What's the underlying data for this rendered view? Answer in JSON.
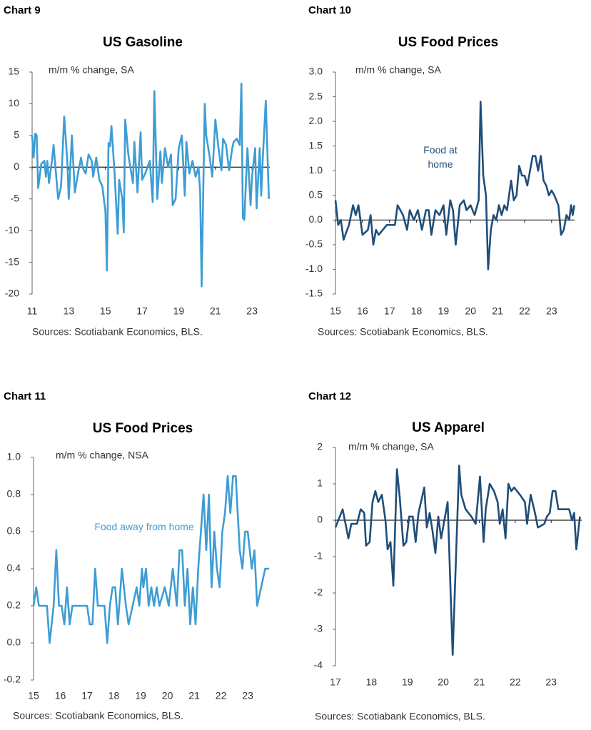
{
  "chart_data": [
    {
      "type": "line",
      "label": "Chart 9",
      "title": "US Gasoline",
      "subtitle": "m/m % change, SA",
      "source": "Sources: Scotiabank Economics, BLS.",
      "color": "#3d9dd4",
      "zero_line": true,
      "xlim": [
        11,
        23.97
      ],
      "xticks": [
        11,
        13,
        15,
        17,
        19,
        21,
        23
      ],
      "ylim": [
        -20,
        15
      ],
      "yticks": [
        15,
        10,
        5,
        0,
        -5,
        -10,
        -15,
        -20
      ],
      "x": [
        11.0,
        11.08,
        11.17,
        11.25,
        11.33,
        11.5,
        11.67,
        11.75,
        11.83,
        11.92,
        12.08,
        12.17,
        12.42,
        12.58,
        12.75,
        12.92,
        13.0,
        13.17,
        13.33,
        13.5,
        13.67,
        13.75,
        13.92,
        14.08,
        14.25,
        14.33,
        14.5,
        14.67,
        14.83,
        15.0,
        15.08,
        15.17,
        15.25,
        15.33,
        15.5,
        15.67,
        15.75,
        15.92,
        16.0,
        16.08,
        16.25,
        16.5,
        16.58,
        16.75,
        16.92,
        17.0,
        17.17,
        17.42,
        17.58,
        17.67,
        17.83,
        18.0,
        18.08,
        18.25,
        18.42,
        18.58,
        18.67,
        18.83,
        19.0,
        19.17,
        19.33,
        19.42,
        19.58,
        19.75,
        19.92,
        20.08,
        20.17,
        20.25,
        20.42,
        20.5,
        20.67,
        20.83,
        21.0,
        21.17,
        21.33,
        21.42,
        21.58,
        21.75,
        21.92,
        22.0,
        22.17,
        22.33,
        22.42,
        22.5,
        22.58,
        22.75,
        22.92,
        23.0,
        23.17,
        23.25,
        23.42,
        23.5,
        23.58,
        23.75,
        23.92
      ],
      "values": [
        5,
        1.5,
        5.3,
        5,
        -3.3,
        0.5,
        1,
        -1.5,
        1,
        -2.5,
        1,
        3.5,
        -5,
        -3,
        8,
        1,
        -5,
        5,
        -4,
        -1,
        1.5,
        0,
        -1,
        2,
        1,
        -1.5,
        1.5,
        -2,
        -3,
        -7,
        -16.3,
        3.8,
        3.3,
        6.5,
        -1,
        -10.5,
        -2,
        -5,
        -10.3,
        7.5,
        2,
        -2.5,
        4,
        -4,
        5.5,
        -2,
        -1,
        1,
        -5.5,
        12,
        -5,
        2.5,
        -2.5,
        3,
        0,
        2,
        -6,
        -5,
        3,
        5,
        -4.5,
        4,
        -1,
        1,
        -1.5,
        0,
        -4,
        -18.8,
        10,
        5,
        2,
        -1.5,
        7.5,
        3,
        -0.5,
        4.5,
        3.5,
        -0.5,
        3,
        4,
        4.5,
        3.5,
        13.2,
        -8,
        -8.3,
        3,
        -6,
        -1.5,
        3,
        -6.5,
        3,
        -4.5,
        1,
        10.5,
        -5
      ]
    },
    {
      "type": "line",
      "label": "Chart 10",
      "title": "US Food Prices",
      "subtitle": "m/m % change, SA",
      "source": "Sources: Scotiabank Economics, BLS.",
      "annotation": "Food at home",
      "color": "#1f4e79",
      "zero_line": true,
      "xlim": [
        15,
        23.85
      ],
      "xticks": [
        15,
        16,
        17,
        18,
        19,
        20,
        21,
        22,
        23
      ],
      "ylim": [
        -1.5,
        3
      ],
      "yticks": [
        {
          "value": 3,
          "label": "3.0"
        },
        2.5,
        {
          "value": 2,
          "label": "2.0"
        },
        1.5,
        {
          "value": 1,
          "label": "1.0"
        },
        0.5,
        {
          "value": 0,
          "label": "0.0"
        },
        -0.5,
        {
          "value": -1,
          "label": "-1.0"
        },
        -1.5
      ],
      "x": [
        15.0,
        15.1,
        15.2,
        15.3,
        15.5,
        15.65,
        15.75,
        15.85,
        16.0,
        16.2,
        16.3,
        16.4,
        16.5,
        16.6,
        16.75,
        16.9,
        17.2,
        17.3,
        17.5,
        17.65,
        17.75,
        17.9,
        18.05,
        18.2,
        18.35,
        18.45,
        18.55,
        18.7,
        18.85,
        19.0,
        19.1,
        19.25,
        19.35,
        19.45,
        19.6,
        19.75,
        19.85,
        20.0,
        20.15,
        20.3,
        20.37,
        20.47,
        20.57,
        20.65,
        20.75,
        20.85,
        20.95,
        21.05,
        21.15,
        21.25,
        21.35,
        21.5,
        21.6,
        21.7,
        21.8,
        21.9,
        22.0,
        22.1,
        22.2,
        22.3,
        22.4,
        22.5,
        22.6,
        22.7,
        22.8,
        22.9,
        23.0,
        23.1,
        23.25,
        23.35,
        23.45,
        23.55,
        23.65,
        23.72,
        23.78,
        23.84
      ],
      "values": [
        0.4,
        -0.1,
        0,
        -0.4,
        -0.1,
        0.3,
        0.1,
        0.3,
        -0.3,
        -0.2,
        0.1,
        -0.5,
        -0.2,
        -0.3,
        -0.2,
        -0.1,
        -0.1,
        0.3,
        0.1,
        -0.2,
        0.2,
        0,
        0.2,
        -0.2,
        0.2,
        0.2,
        -0.3,
        0.2,
        0.1,
        0.3,
        -0.3,
        0.4,
        0.2,
        -0.5,
        0.3,
        0.4,
        0.2,
        0.3,
        0.1,
        0.4,
        2.4,
        0.9,
        0.5,
        -1,
        -0.2,
        0.1,
        0,
        0.3,
        0.1,
        0.3,
        0.2,
        0.8,
        0.4,
        0.5,
        1.1,
        0.9,
        0.9,
        0.7,
        1,
        1.3,
        1.3,
        1,
        1.3,
        0.8,
        0.7,
        0.5,
        0.6,
        0.5,
        0.3,
        -0.3,
        -0.2,
        0.1,
        0,
        0.3,
        0.1,
        0.3
      ]
    },
    {
      "type": "line",
      "label": "Chart 11",
      "title": "US Food Prices",
      "subtitle": "m/m % change, NSA",
      "source": "Sources: Scotiabank Economics, BLS.",
      "annotation": "Food away from home",
      "color": "#3d9dd4",
      "zero_line": false,
      "xlim": [
        15,
        23.85
      ],
      "xticks": [
        15,
        16,
        17,
        18,
        19,
        20,
        21,
        22,
        23
      ],
      "ylim": [
        -0.2,
        1
      ],
      "yticks": [
        {
          "value": 1,
          "label": "1.0"
        },
        0.8,
        0.6,
        0.4,
        0.2,
        {
          "value": 0,
          "label": "0.0"
        },
        -0.2
      ],
      "x": [
        15.0,
        15.1,
        15.2,
        15.5,
        15.6,
        15.75,
        15.85,
        15.95,
        16.05,
        16.15,
        16.25,
        16.35,
        16.45,
        17.0,
        17.1,
        17.2,
        17.3,
        17.4,
        17.5,
        17.65,
        17.75,
        17.85,
        17.95,
        18.05,
        18.15,
        18.3,
        18.45,
        18.55,
        18.7,
        18.85,
        18.95,
        19.05,
        19.1,
        19.2,
        19.3,
        19.4,
        19.5,
        19.6,
        19.7,
        19.9,
        20.05,
        20.2,
        20.35,
        20.45,
        20.55,
        20.65,
        20.75,
        20.85,
        20.95,
        21.05,
        21.15,
        21.25,
        21.35,
        21.45,
        21.55,
        21.65,
        21.75,
        21.85,
        21.95,
        22.05,
        22.15,
        22.25,
        22.35,
        22.45,
        22.55,
        22.7,
        22.8,
        22.9,
        23.0,
        23.15,
        23.25,
        23.35,
        23.5,
        23.65,
        23.8
      ],
      "values": [
        0.2,
        0.3,
        0.2,
        0.2,
        0,
        0.2,
        0.5,
        0.2,
        0.2,
        0.1,
        0.3,
        0.1,
        0.2,
        0.2,
        0.1,
        0.1,
        0.4,
        0.2,
        0.2,
        0.2,
        0,
        0.2,
        0.3,
        0.3,
        0.1,
        0.4,
        0.2,
        0.1,
        0.2,
        0.3,
        0.2,
        0.4,
        0.3,
        0.4,
        0.2,
        0.3,
        0.2,
        0.3,
        0.2,
        0.3,
        0.2,
        0.4,
        0.2,
        0.5,
        0.5,
        0.2,
        0.4,
        0.1,
        0.3,
        0.1,
        0.4,
        0.6,
        0.8,
        0.5,
        0.8,
        0.3,
        0.6,
        0.4,
        0.3,
        0.6,
        0.7,
        0.9,
        0.7,
        0.9,
        0.9,
        0.5,
        0.4,
        0.6,
        0.6,
        0.4,
        0.5,
        0.2,
        0.3,
        0.4,
        0.4
      ]
    },
    {
      "type": "line",
      "label": "Chart 12",
      "title": "US Apparel",
      "subtitle": "m/m % change, SA",
      "source": "Sources: Scotiabank Economics, BLS.",
      "color": "#1f4e79",
      "zero_line": true,
      "xlim": [
        17,
        23.85
      ],
      "xticks": [
        17,
        18,
        19,
        20,
        21,
        22,
        23
      ],
      "ylim": [
        -4,
        2
      ],
      "yticks": [
        2,
        1,
        0,
        -1,
        -2,
        -3,
        -4
      ],
      "x": [
        17.0,
        17.2,
        17.36,
        17.44,
        17.6,
        17.7,
        17.8,
        17.85,
        17.95,
        18.03,
        18.11,
        18.19,
        18.29,
        18.39,
        18.45,
        18.53,
        18.61,
        18.71,
        18.79,
        18.89,
        18.97,
        19.05,
        19.15,
        19.23,
        19.31,
        19.47,
        19.54,
        19.62,
        19.7,
        19.78,
        19.86,
        19.94,
        20.12,
        20.26,
        20.44,
        20.5,
        20.62,
        20.78,
        20.9,
        21.02,
        21.12,
        21.18,
        21.29,
        21.41,
        21.51,
        21.57,
        21.65,
        21.73,
        21.81,
        21.89,
        21.97,
        22.13,
        22.27,
        22.33,
        22.43,
        22.55,
        22.63,
        22.81,
        22.88,
        22.96,
        23.04,
        23.12,
        23.2,
        23.36,
        23.5,
        23.58,
        23.64,
        23.7,
        23.8
      ],
      "values": [
        -0.2,
        0.3,
        -0.5,
        -0.1,
        -0.1,
        0.3,
        0.2,
        -0.7,
        -0.6,
        0.5,
        0.8,
        0.5,
        0.7,
        0,
        -0.8,
        -0.6,
        -1.8,
        1.4,
        0.6,
        -0.7,
        -0.6,
        0.1,
        0.1,
        -0.6,
        0.2,
        0.9,
        -0.2,
        0.2,
        -0.3,
        -0.9,
        0.1,
        -0.5,
        0.5,
        -3.7,
        1.5,
        0.7,
        0.3,
        0.1,
        -0.1,
        1.2,
        -0.6,
        0.3,
        1,
        0.8,
        0.5,
        -0.1,
        0.3,
        -0.5,
        1,
        0.8,
        0.9,
        0.7,
        0.5,
        -0.1,
        0.7,
        0.2,
        -0.2,
        -0.1,
        0.1,
        0.2,
        0.8,
        0.8,
        0.3,
        0.3,
        0.3,
        0,
        0.2,
        -0.8,
        0.1
      ]
    }
  ]
}
